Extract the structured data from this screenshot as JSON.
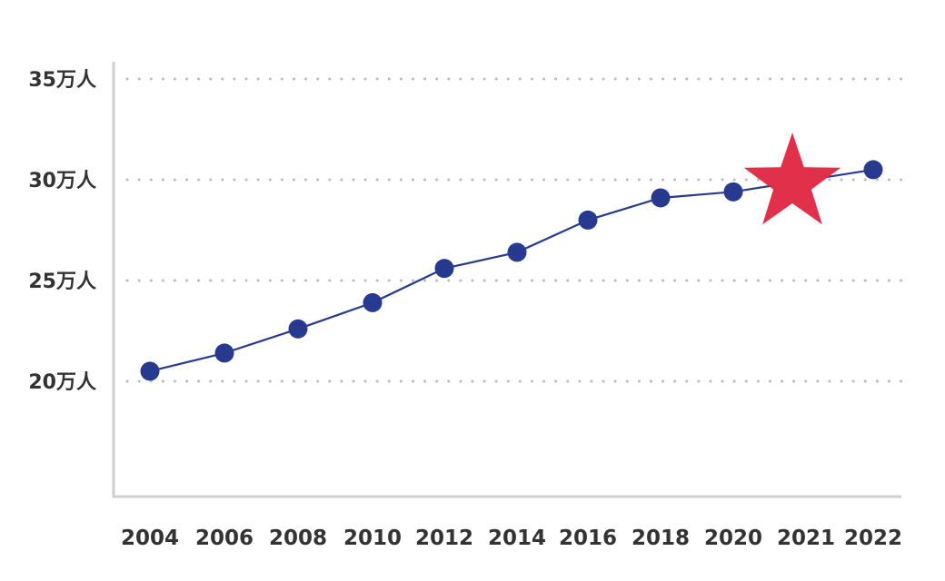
{
  "chart_data": {
    "type": "line",
    "x_labels": [
      "2004",
      "2006",
      "2008",
      "2010",
      "2012",
      "2014",
      "2016",
      "2018",
      "2020",
      "2021",
      "2022"
    ],
    "y_ticks": [
      {
        "value": 20,
        "label": "20万人"
      },
      {
        "value": 25,
        "label": "25万人"
      },
      {
        "value": 30,
        "label": "30万人"
      },
      {
        "value": 35,
        "label": "35万人"
      }
    ],
    "ylim": [
      15.5,
      36.0
    ],
    "series": [
      {
        "values": [
          20.5,
          21.4,
          22.6,
          23.9,
          25.6,
          26.4,
          28.0,
          29.1,
          29.4,
          null,
          30.5
        ],
        "color": "#283a8f"
      }
    ],
    "highlight": {
      "x": "2021",
      "y": 30.0,
      "shape": "star-icon",
      "color": "#e0304a"
    },
    "grid": "horizontal-dotted",
    "legend": "none"
  }
}
